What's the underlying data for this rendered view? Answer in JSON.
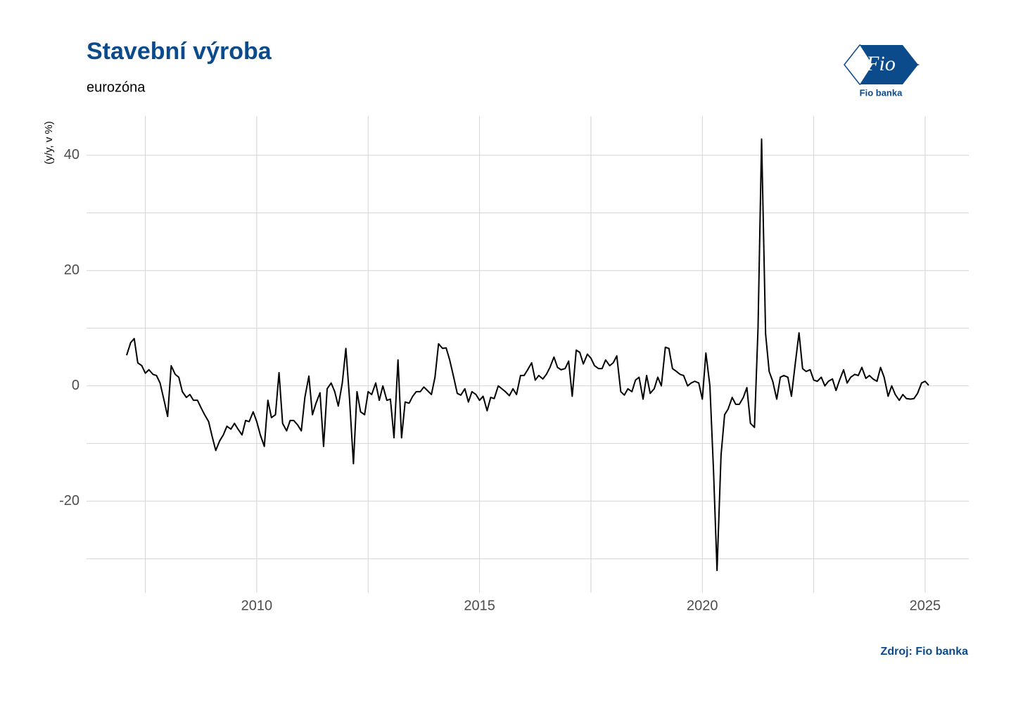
{
  "chart_data": {
    "type": "line",
    "title": "Stavební výroba",
    "subtitle": "eurozóna",
    "y_label": "(y/y, v %)",
    "source": "Zdroj: Fio banka",
    "xlim": [
      2006.18,
      2025.98
    ],
    "xticks": [
      2010,
      2015,
      2020,
      2025
    ],
    "x_minor_grid": [
      2007.5,
      2012.5,
      2017.5,
      2022.5
    ],
    "ylim": [
      -35.9,
      46.8
    ],
    "yticks": [
      -20,
      0,
      20,
      40
    ],
    "y_minor_grid": [
      -30,
      -10,
      10,
      30
    ],
    "grid": true,
    "series": [
      {
        "color": "#000000",
        "x": [
          2007.08,
          2007.17,
          2007.25,
          2007.33,
          2007.42,
          2007.5,
          2007.58,
          2007.67,
          2007.75,
          2007.83,
          2007.92,
          2008,
          2008.08,
          2008.17,
          2008.25,
          2008.33,
          2008.42,
          2008.5,
          2008.58,
          2008.67,
          2008.75,
          2008.83,
          2008.92,
          2009,
          2009.08,
          2009.17,
          2009.25,
          2009.33,
          2009.42,
          2009.5,
          2009.58,
          2009.67,
          2009.75,
          2009.83,
          2009.92,
          2010,
          2010.08,
          2010.17,
          2010.25,
          2010.33,
          2010.42,
          2010.5,
          2010.58,
          2010.67,
          2010.75,
          2010.83,
          2010.92,
          2011,
          2011.08,
          2011.17,
          2011.25,
          2011.33,
          2011.42,
          2011.5,
          2011.58,
          2011.67,
          2011.75,
          2011.83,
          2011.92,
          2012,
          2012.08,
          2012.17,
          2012.25,
          2012.33,
          2012.42,
          2012.5,
          2012.58,
          2012.67,
          2012.75,
          2012.83,
          2012.92,
          2013,
          2013.08,
          2013.17,
          2013.25,
          2013.33,
          2013.42,
          2013.5,
          2013.58,
          2013.67,
          2013.75,
          2013.83,
          2013.92,
          2014,
          2014.08,
          2014.17,
          2014.25,
          2014.33,
          2014.42,
          2014.5,
          2014.58,
          2014.67,
          2014.75,
          2014.83,
          2014.92,
          2015,
          2015.08,
          2015.17,
          2015.25,
          2015.33,
          2015.42,
          2015.5,
          2015.58,
          2015.67,
          2015.75,
          2015.83,
          2015.92,
          2016,
          2016.08,
          2016.17,
          2016.25,
          2016.33,
          2016.42,
          2016.5,
          2016.58,
          2016.67,
          2016.75,
          2016.83,
          2016.92,
          2017,
          2017.08,
          2017.17,
          2017.25,
          2017.33,
          2017.42,
          2017.5,
          2017.58,
          2017.67,
          2017.75,
          2017.83,
          2017.92,
          2018,
          2018.08,
          2018.17,
          2018.25,
          2018.33,
          2018.42,
          2018.5,
          2018.58,
          2018.67,
          2018.75,
          2018.83,
          2018.92,
          2019,
          2019.08,
          2019.17,
          2019.25,
          2019.33,
          2019.42,
          2019.5,
          2019.58,
          2019.67,
          2019.75,
          2019.83,
          2019.92,
          2020,
          2020.08,
          2020.17,
          2020.25,
          2020.33,
          2020.42,
          2020.5,
          2020.58,
          2020.67,
          2020.75,
          2020.83,
          2020.92,
          2021,
          2021.08,
          2021.17,
          2021.25,
          2021.33,
          2021.42,
          2021.5,
          2021.58,
          2021.67,
          2021.75,
          2021.83,
          2021.92,
          2022,
          2022.08,
          2022.17,
          2022.25,
          2022.33,
          2022.42,
          2022.5,
          2022.58,
          2022.67,
          2022.75,
          2022.83,
          2022.92,
          2023,
          2023.08,
          2023.17,
          2023.25,
          2023.33,
          2023.42,
          2023.5,
          2023.58,
          2023.67,
          2023.75,
          2023.83,
          2023.92,
          2024,
          2024.08,
          2024.17,
          2024.25,
          2024.33,
          2024.42,
          2024.5,
          2024.58,
          2024.67,
          2024.75,
          2024.83,
          2024.92,
          2025,
          2025.08
        ],
        "values": [
          5.3,
          7.5,
          8.2,
          4.0,
          3.5,
          2.2,
          2.8,
          2.0,
          1.8,
          0.5,
          -2.5,
          -5.3,
          3.5,
          2.0,
          1.5,
          -1.0,
          -2.0,
          -1.5,
          -2.5,
          -2.5,
          -3.8,
          -5.0,
          -6.2,
          -8.8,
          -11.2,
          -9.5,
          -8.5,
          -7.0,
          -7.5,
          -6.5,
          -7.5,
          -8.5,
          -6.0,
          -6.2,
          -4.5,
          -6.2,
          -8.5,
          -10.5,
          -2.5,
          -5.5,
          -5.0,
          2.3,
          -6.5,
          -7.8,
          -6.0,
          -6.0,
          -6.8,
          -7.8,
          -2.0,
          1.7,
          -5.0,
          -3.0,
          -1.2,
          -10.5,
          -0.5,
          0.5,
          -1.0,
          -3.5,
          0.5,
          6.5,
          -2.0,
          -13.5,
          -1.0,
          -4.5,
          -5.0,
          -1.0,
          -1.5,
          0.5,
          -2.5,
          0.0,
          -2.5,
          -2.3,
          -9.0,
          4.5,
          -9.0,
          -2.8,
          -3.0,
          -1.8,
          -1.0,
          -1.0,
          -0.2,
          -0.8,
          -1.5,
          1.5,
          7.3,
          6.5,
          6.6,
          4.5,
          1.5,
          -1.3,
          -1.6,
          -0.5,
          -2.8,
          -1.0,
          -1.5,
          -2.5,
          -1.8,
          -4.3,
          -2.0,
          -2.2,
          0.0,
          -0.5,
          -1.0,
          -1.7,
          -0.5,
          -1.5,
          1.8,
          1.8,
          2.8,
          4.0,
          1.0,
          1.8,
          1.2,
          2.0,
          3.2,
          5.0,
          3.2,
          2.8,
          3.0,
          4.3,
          -1.8,
          6.2,
          5.8,
          3.8,
          5.5,
          4.8,
          3.5,
          3.0,
          3.0,
          4.5,
          3.5,
          4.0,
          5.2,
          -1.0,
          -1.6,
          -0.5,
          -1.0,
          1.0,
          1.5,
          -2.3,
          1.8,
          -1.3,
          -0.5,
          1.5,
          0.0,
          6.7,
          6.5,
          3.0,
          2.5,
          2.0,
          1.8,
          0.0,
          0.5,
          0.8,
          0.5,
          -2.3,
          5.7,
          0.0,
          -14.5,
          -32.0,
          -12.0,
          -5.0,
          -4.0,
          -2.0,
          -3.2,
          -3.2,
          -2.0,
          -0.3,
          -6.5,
          -7.2,
          10.0,
          42.8,
          9.0,
          2.5,
          0.8,
          -2.3,
          1.5,
          1.8,
          1.5,
          -1.8,
          3.5,
          9.2,
          3.0,
          2.5,
          2.8,
          1.0,
          0.8,
          1.5,
          0.0,
          0.8,
          1.2,
          -0.8,
          1.0,
          2.8,
          0.5,
          1.5,
          2.0,
          1.8,
          3.2,
          1.3,
          1.8,
          1.2,
          0.8,
          3.2,
          1.5,
          -1.8,
          0.0,
          -1.5,
          -2.5,
          -1.5,
          -2.2,
          -2.3,
          -2.2,
          -1.3,
          0.5,
          0.8,
          0.1
        ]
      }
    ]
  },
  "logo": {
    "mark": "Fio",
    "text": "Fio banka"
  }
}
